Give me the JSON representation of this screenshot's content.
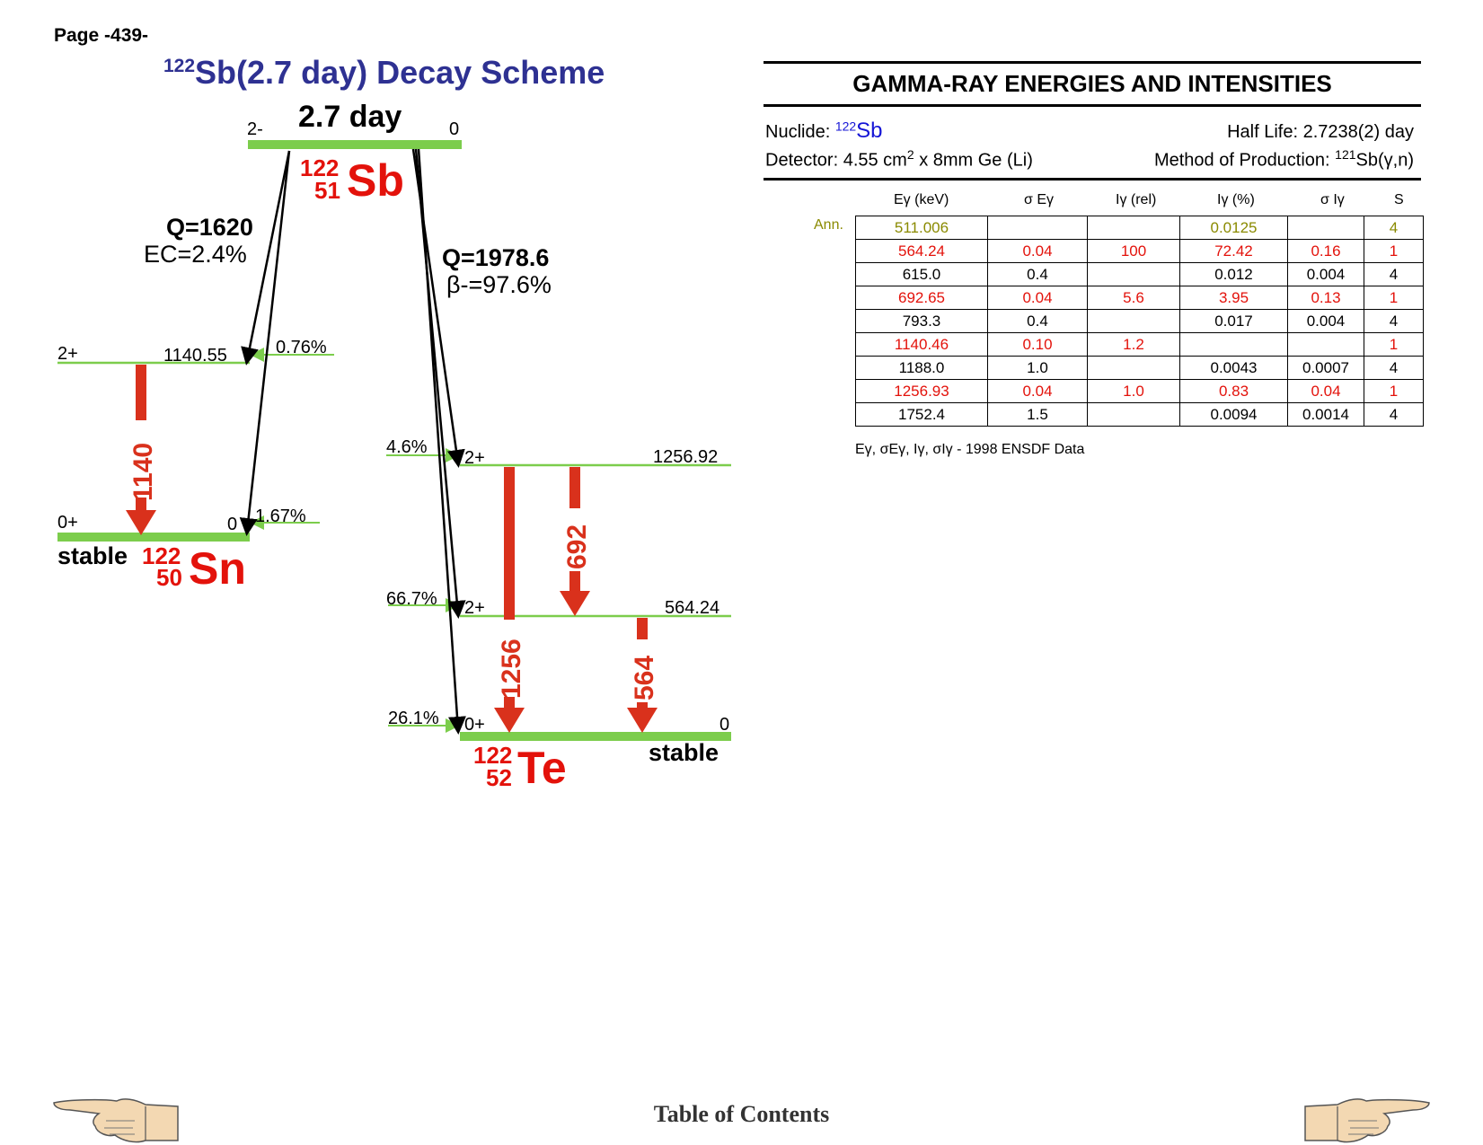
{
  "page_label": "Page -439-",
  "scheme": {
    "title_mass": "122",
    "title_rest": "Sb(2.7 day) Decay Scheme",
    "parent": {
      "halflife": "2.7 day",
      "spin_left": "2-",
      "energy_right": "0",
      "mass": "122",
      "z": "51",
      "symbol": "Sb"
    },
    "ec_branch": {
      "q": "Q=1620",
      "ratio": "EC=2.4%"
    },
    "beta_branch": {
      "q": "Q=1978.6",
      "ratio": "β-=97.6%"
    },
    "sn": {
      "mass": "122",
      "z": "50",
      "symbol": "Sn",
      "stable": "stable",
      "levels": [
        {
          "spin": "2+",
          "energy": "1140.55",
          "feed": "0.76%"
        },
        {
          "spin": "0+",
          "energy": "0",
          "feed": "1.67%"
        }
      ],
      "gamma": "1140"
    },
    "te": {
      "mass": "122",
      "z": "52",
      "symbol": "Te",
      "stable": "stable",
      "levels": [
        {
          "spin": "2+",
          "energy": "1256.92",
          "feed": "4.6%"
        },
        {
          "spin": "2+",
          "energy": "564.24",
          "feed": "66.7%"
        },
        {
          "spin": "0+",
          "energy": "0",
          "feed": "26.1%"
        }
      ],
      "gammas": [
        "1256",
        "692",
        "564"
      ]
    }
  },
  "panel": {
    "title": "GAMMA-RAY ENERGIES AND INTENSITIES",
    "nuclide_label": "Nuclide: ",
    "nuclide_mass": "122",
    "nuclide_symbol": "Sb",
    "half_life": "Half Life: 2.7238(2) day",
    "detector_a": "Detector: 4.55 cm",
    "detector_sup": "2",
    "detector_b": " x 8mm Ge (Li)",
    "method_a": "Method of Production: ",
    "method_sup": "121",
    "method_b": "Sb(γ,n)",
    "headers": [
      "Eγ (keV)",
      "σ Eγ",
      "Iγ (rel)",
      "Iγ (%)",
      "σ Iγ",
      "S"
    ],
    "ann_label": "Ann.",
    "rows": [
      {
        "cells": [
          "511.006",
          "",
          "",
          "0.0125",
          "",
          "4"
        ],
        "style": "olive"
      },
      {
        "cells": [
          "564.24",
          "0.04",
          "100",
          "72.42",
          "0.16",
          "1"
        ],
        "style": "red"
      },
      {
        "cells": [
          "615.0",
          "0.4",
          "",
          "0.012",
          "0.004",
          "4"
        ],
        "style": "black"
      },
      {
        "cells": [
          "692.65",
          "0.04",
          "5.6",
          "3.95",
          "0.13",
          "1"
        ],
        "style": "red"
      },
      {
        "cells": [
          "793.3",
          "0.4",
          "",
          "0.017",
          "0.004",
          "4"
        ],
        "style": "black"
      },
      {
        "cells": [
          "1140.46",
          "0.10",
          "1.2",
          "",
          "",
          "1"
        ],
        "style": "red"
      },
      {
        "cells": [
          "1188.0",
          "1.0",
          "",
          "0.0043",
          "0.0007",
          "4"
        ],
        "style": "black"
      },
      {
        "cells": [
          "1256.93",
          "0.04",
          "1.0",
          "0.83",
          "0.04",
          "1"
        ],
        "style": "red"
      },
      {
        "cells": [
          "1752.4",
          "1.5",
          "",
          "0.0094",
          "0.0014",
          "4"
        ],
        "style": "black"
      }
    ],
    "source_note": "Eγ, σEγ, Iγ, σIγ - 1998 ENSDF Data"
  },
  "footer": {
    "toc": "Table of Contents",
    "prev_icon": "hand-pointing-left-icon",
    "next_icon": "hand-pointing-right-icon"
  },
  "colors": {
    "level": "#7ccd4c",
    "gamma": "#d9311c",
    "title": "#2e3192",
    "nuclide": "#e3120b"
  }
}
